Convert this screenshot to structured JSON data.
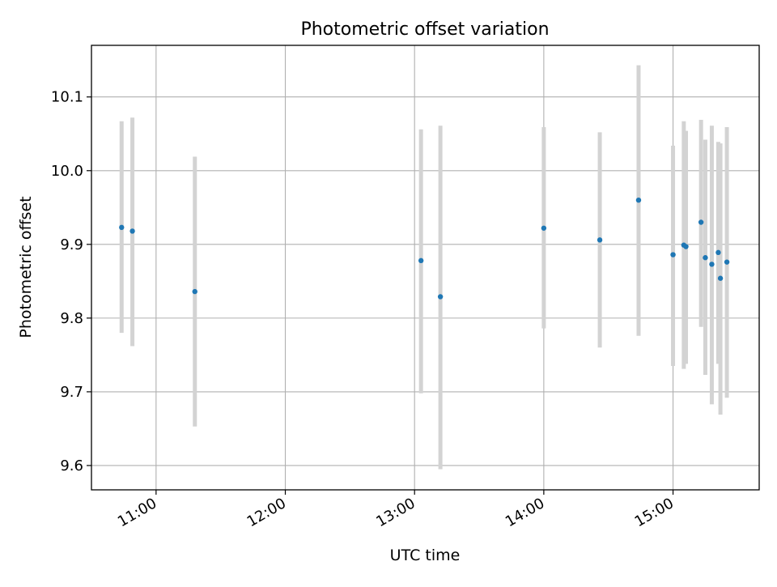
{
  "chart_data": {
    "type": "scatter",
    "title": "Photometric offset variation",
    "xlabel": "UTC time",
    "ylabel": "Photometric offset",
    "x_unit": "UTC time (HH:MM)",
    "xlim": [
      "10:30",
      "15:40"
    ],
    "ylim": [
      9.567,
      10.17
    ],
    "x_ticks": [
      "11:00",
      "12:00",
      "13:00",
      "14:00",
      "15:00"
    ],
    "y_ticks": [
      9.6,
      9.7,
      9.8,
      9.9,
      10.0,
      10.1
    ],
    "y_tick_labels": [
      "9.6",
      "9.7",
      "9.8",
      "9.9",
      "10.0",
      "10.1"
    ],
    "grid": true,
    "legend": "none",
    "colors": {
      "marker": "#1f77b4",
      "errorbar": "#d3d3d3",
      "grid": "#b0b0b0",
      "axes": "#000000"
    },
    "series": [
      {
        "x": [
          "10:44",
          "10:49",
          "11:18",
          "13:03",
          "13:12",
          "14:00",
          "14:26",
          "14:44",
          "15:00",
          "15:05",
          "15:06",
          "15:13",
          "15:15",
          "15:18",
          "15:21",
          "15:22",
          "15:25"
        ],
        "y": [
          9.923,
          9.918,
          9.836,
          9.878,
          9.829,
          9.922,
          9.906,
          9.96,
          9.886,
          9.899,
          9.897,
          9.93,
          9.882,
          9.873,
          9.889,
          9.854,
          9.876
        ],
        "yerr_low": [
          9.78,
          9.762,
          9.653,
          9.698,
          9.595,
          9.786,
          9.76,
          9.776,
          9.735,
          9.731,
          9.738,
          9.788,
          9.723,
          9.683,
          9.738,
          9.669,
          9.692
        ],
        "yerr_high": [
          10.067,
          10.072,
          10.019,
          10.056,
          10.061,
          10.059,
          10.052,
          10.143,
          10.034,
          10.067,
          10.054,
          10.069,
          10.042,
          10.061,
          10.039,
          10.037,
          10.059
        ]
      }
    ]
  }
}
